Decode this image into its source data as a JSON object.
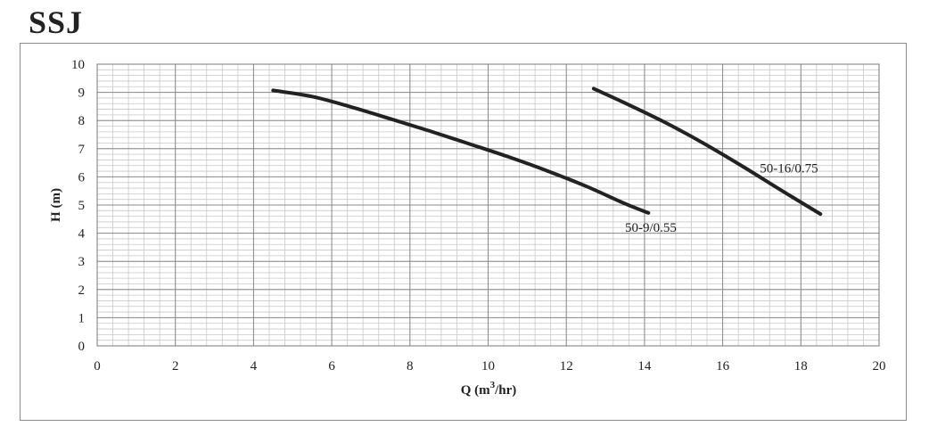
{
  "header": {
    "title": "SSJ"
  },
  "chart_data": {
    "type": "line",
    "title": "",
    "xlabel": "Q (m",
    "xlabel_sup": "3",
    "xlabel_tail": "/hr)",
    "ylabel": "H (m)",
    "xlim": [
      0,
      20
    ],
    "ylim": [
      0,
      10
    ],
    "x_ticks": [
      0,
      2,
      4,
      6,
      8,
      10,
      12,
      14,
      16,
      18,
      20
    ],
    "y_ticks": [
      0,
      1,
      2,
      3,
      4,
      5,
      6,
      7,
      8,
      9,
      10
    ],
    "x_minor_step": 0.4,
    "y_minor_step": 0.2,
    "grid": true,
    "legend": "none",
    "series": [
      {
        "name": "50-9/0.55",
        "color": "#222222",
        "x": [
          4.5,
          5.5,
          6.5,
          7.5,
          8.5,
          9.5,
          10.5,
          11.5,
          12.5,
          13.5,
          14.1
        ],
        "y": [
          9.07,
          8.85,
          8.48,
          8.06,
          7.63,
          7.18,
          6.72,
          6.22,
          5.67,
          5.05,
          4.72
        ]
      },
      {
        "name": "50-16/0.75",
        "color": "#222222",
        "x": [
          12.7,
          13.5,
          14.5,
          15.5,
          16.5,
          17.5,
          18.5
        ],
        "y": [
          9.13,
          8.62,
          7.95,
          7.2,
          6.38,
          5.52,
          4.68
        ]
      }
    ],
    "annotations": [
      {
        "text": "50-9/0.55",
        "x": 13.5,
        "y": 4.05
      },
      {
        "text": "50-16/0.75",
        "x": 16.95,
        "y": 6.15
      }
    ]
  }
}
